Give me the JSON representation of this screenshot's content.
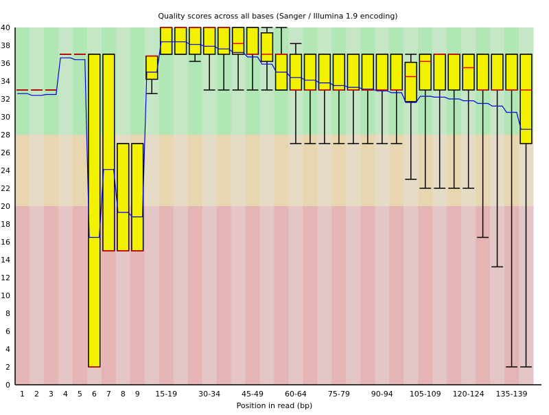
{
  "chart_data": {
    "type": "boxplot",
    "title": "Quality scores across all bases (Sanger / Illumina 1.9 encoding)",
    "xlabel": "Position in read (bp)",
    "ylabel": "",
    "ylim": [
      0,
      40
    ],
    "y_ticks": [
      0,
      2,
      4,
      6,
      8,
      10,
      12,
      14,
      16,
      18,
      20,
      22,
      24,
      26,
      28,
      30,
      32,
      34,
      36,
      38,
      40
    ],
    "zones": [
      {
        "from": 28,
        "to": 40,
        "colors": [
          "#b1e6b5",
          "#c5e7c6"
        ]
      },
      {
        "from": 20,
        "to": 28,
        "colors": [
          "#e7d6b0",
          "#e6dcc6"
        ]
      },
      {
        "from": 0,
        "to": 20,
        "colors": [
          "#e5b4b4",
          "#e4c6c6"
        ]
      }
    ],
    "colors": {
      "box": "#f2f200",
      "median": "#e00000",
      "mean": "#0000e0",
      "whisker": "#000000"
    },
    "categories": [
      "1",
      "2",
      "3",
      "4",
      "5",
      "6",
      "7",
      "8",
      "9",
      "10-14",
      "15-19",
      "20-24",
      "25-29",
      "30-34",
      "35-39",
      "40-44",
      "45-49",
      "50-54",
      "55-59",
      "60-64",
      "65-69",
      "70-74",
      "75-79",
      "80-84",
      "85-89",
      "90-94",
      "95-99",
      "100-104",
      "105-109",
      "110-114",
      "115-119",
      "120-124",
      "125-129",
      "130-134",
      "135-139",
      "140-144"
    ],
    "x_tick_labels": [
      "1",
      "2",
      "3",
      "4",
      "5",
      "6",
      "7",
      "8",
      "9",
      "15-19",
      "30-34",
      "45-49",
      "60-64",
      "75-79",
      "90-94",
      "105-109",
      "120-124",
      "135-139"
    ],
    "series": {
      "median": [
        33,
        33,
        33,
        37,
        37,
        2,
        15,
        15,
        15,
        36.8,
        40,
        40,
        40,
        40,
        40,
        38.2,
        37,
        37,
        37,
        33,
        33,
        33,
        33,
        33,
        33,
        33,
        33,
        34.5,
        36.2,
        37,
        37,
        35.5,
        33,
        33,
        33,
        33
      ],
      "q1": [
        33,
        33,
        33,
        37,
        37,
        2,
        15,
        15,
        15,
        34.2,
        37,
        37,
        37,
        37,
        37,
        37,
        37,
        36.2,
        33,
        33,
        33,
        33,
        33,
        33,
        33,
        33,
        33,
        31.7,
        33,
        33,
        33,
        33,
        33,
        33,
        33,
        27
      ],
      "q3": [
        33,
        33,
        33,
        37,
        37,
        37,
        37,
        27,
        27,
        36.8,
        40,
        40,
        40,
        40,
        40,
        40,
        40,
        39.4,
        37,
        37,
        37,
        37,
        37,
        37,
        37,
        37,
        37,
        36.1,
        37,
        37,
        37,
        37,
        37,
        37,
        37,
        37
      ],
      "lower": [
        33,
        33,
        33,
        37,
        37,
        2,
        15,
        15,
        15,
        32.6,
        37,
        37,
        36.2,
        33,
        33,
        33,
        33,
        33,
        33,
        27,
        27,
        27,
        27,
        27,
        27,
        27,
        27,
        23,
        22,
        22,
        22,
        22,
        16.5,
        13.2,
        2,
        2
      ],
      "upper": [
        33,
        33,
        33,
        37,
        37,
        37,
        37,
        27,
        27,
        36.8,
        40,
        40,
        40,
        40,
        40,
        40,
        40,
        40,
        40,
        38.2,
        37,
        37,
        37,
        37,
        37,
        37,
        37,
        37,
        37,
        37,
        37,
        37,
        37,
        37,
        37,
        37
      ],
      "mean": [
        32.6,
        32.4,
        32.5,
        36.6,
        36.4,
        16.5,
        24.1,
        19.3,
        18.8,
        35.0,
        38.4,
        38.4,
        38.1,
        37.9,
        37.6,
        37.2,
        36.7,
        35.9,
        35.0,
        34.4,
        34.1,
        33.8,
        33.5,
        33.3,
        33.1,
        32.9,
        32.7,
        31.6,
        32.3,
        32.2,
        32.0,
        31.8,
        31.5,
        31.2,
        30.5,
        28.6
      ]
    }
  }
}
